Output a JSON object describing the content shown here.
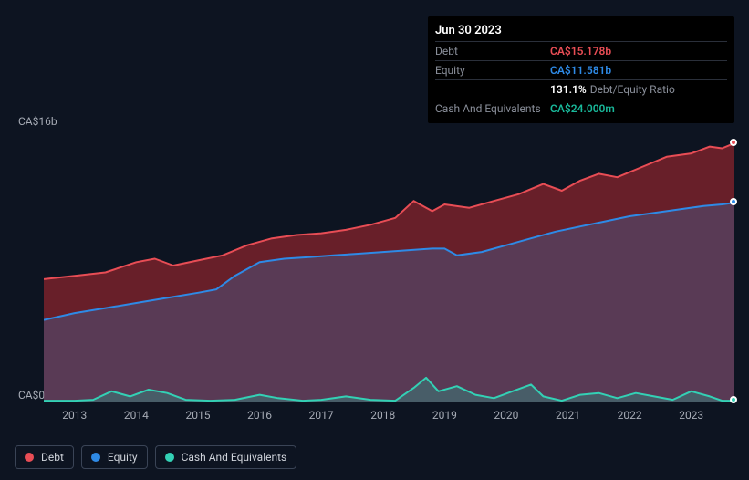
{
  "tooltip": {
    "date": "Jun 30 2023",
    "rows": {
      "debt": {
        "label": "Debt",
        "value": "CA$15.178b"
      },
      "equity": {
        "label": "Equity",
        "value": "CA$11.581b"
      },
      "ratio": {
        "pct": "131.1%",
        "label": "Debt/Equity Ratio"
      },
      "cash": {
        "label": "Cash And Equivalents",
        "value": "CA$24.000m"
      }
    }
  },
  "chart": {
    "type": "area",
    "background_color": "#0d1421",
    "grid_color": "#2b3544",
    "text_color": "#a7acb6",
    "y_axis": {
      "top_label": "CA$16b",
      "bottom_label": "CA$0",
      "min": 0,
      "max": 16
    },
    "x_axis": {
      "labels": [
        "2013",
        "2014",
        "2015",
        "2016",
        "2017",
        "2018",
        "2019",
        "2020",
        "2021",
        "2022",
        "2023"
      ],
      "min": 2012.5,
      "max": 2023.7
    },
    "series": {
      "debt": {
        "color": "#e84d55",
        "area_color": "rgba(180,40,50,0.55)",
        "line_width": 2,
        "points": [
          [
            2012.5,
            7.2
          ],
          [
            2013.0,
            7.4
          ],
          [
            2013.5,
            7.6
          ],
          [
            2014.0,
            8.2
          ],
          [
            2014.3,
            8.4
          ],
          [
            2014.6,
            8.0
          ],
          [
            2015.0,
            8.3
          ],
          [
            2015.4,
            8.6
          ],
          [
            2015.8,
            9.2
          ],
          [
            2016.2,
            9.6
          ],
          [
            2016.6,
            9.8
          ],
          [
            2017.0,
            9.9
          ],
          [
            2017.4,
            10.1
          ],
          [
            2017.8,
            10.4
          ],
          [
            2018.2,
            10.8
          ],
          [
            2018.5,
            11.8
          ],
          [
            2018.8,
            11.2
          ],
          [
            2019.0,
            11.6
          ],
          [
            2019.4,
            11.4
          ],
          [
            2019.8,
            11.8
          ],
          [
            2020.2,
            12.2
          ],
          [
            2020.6,
            12.8
          ],
          [
            2020.9,
            12.4
          ],
          [
            2021.2,
            13.0
          ],
          [
            2021.5,
            13.4
          ],
          [
            2021.8,
            13.2
          ],
          [
            2022.2,
            13.8
          ],
          [
            2022.6,
            14.4
          ],
          [
            2023.0,
            14.6
          ],
          [
            2023.3,
            15.0
          ],
          [
            2023.5,
            14.9
          ],
          [
            2023.7,
            15.2
          ]
        ]
      },
      "equity": {
        "color": "#2e8ae6",
        "area_color": "rgba(70,90,140,0.45)",
        "line_width": 2,
        "points": [
          [
            2012.5,
            4.8
          ],
          [
            2013.0,
            5.2
          ],
          [
            2013.5,
            5.5
          ],
          [
            2014.0,
            5.8
          ],
          [
            2014.5,
            6.1
          ],
          [
            2015.0,
            6.4
          ],
          [
            2015.3,
            6.6
          ],
          [
            2015.6,
            7.4
          ],
          [
            2016.0,
            8.2
          ],
          [
            2016.4,
            8.4
          ],
          [
            2016.8,
            8.5
          ],
          [
            2017.2,
            8.6
          ],
          [
            2017.6,
            8.7
          ],
          [
            2018.0,
            8.8
          ],
          [
            2018.4,
            8.9
          ],
          [
            2018.8,
            9.0
          ],
          [
            2019.0,
            9.0
          ],
          [
            2019.2,
            8.6
          ],
          [
            2019.6,
            8.8
          ],
          [
            2020.0,
            9.2
          ],
          [
            2020.4,
            9.6
          ],
          [
            2020.8,
            10.0
          ],
          [
            2021.2,
            10.3
          ],
          [
            2021.6,
            10.6
          ],
          [
            2022.0,
            10.9
          ],
          [
            2022.4,
            11.1
          ],
          [
            2022.8,
            11.3
          ],
          [
            2023.2,
            11.5
          ],
          [
            2023.5,
            11.6
          ],
          [
            2023.7,
            11.7
          ]
        ]
      },
      "cash": {
        "color": "#33d1b5",
        "area_color": "rgba(40,160,140,0.35)",
        "line_width": 2,
        "points": [
          [
            2012.5,
            0.05
          ],
          [
            2013.0,
            0.05
          ],
          [
            2013.3,
            0.1
          ],
          [
            2013.6,
            0.6
          ],
          [
            2013.9,
            0.3
          ],
          [
            2014.2,
            0.7
          ],
          [
            2014.5,
            0.5
          ],
          [
            2014.8,
            0.1
          ],
          [
            2015.2,
            0.05
          ],
          [
            2015.6,
            0.1
          ],
          [
            2016.0,
            0.4
          ],
          [
            2016.3,
            0.2
          ],
          [
            2016.7,
            0.05
          ],
          [
            2017.0,
            0.1
          ],
          [
            2017.4,
            0.3
          ],
          [
            2017.8,
            0.1
          ],
          [
            2018.2,
            0.05
          ],
          [
            2018.5,
            0.8
          ],
          [
            2018.7,
            1.4
          ],
          [
            2018.9,
            0.6
          ],
          [
            2019.2,
            0.9
          ],
          [
            2019.5,
            0.4
          ],
          [
            2019.8,
            0.2
          ],
          [
            2020.1,
            0.6
          ],
          [
            2020.4,
            1.0
          ],
          [
            2020.6,
            0.3
          ],
          [
            2020.9,
            0.05
          ],
          [
            2021.2,
            0.4
          ],
          [
            2021.5,
            0.5
          ],
          [
            2021.8,
            0.2
          ],
          [
            2022.1,
            0.5
          ],
          [
            2022.4,
            0.3
          ],
          [
            2022.7,
            0.1
          ],
          [
            2023.0,
            0.6
          ],
          [
            2023.3,
            0.3
          ],
          [
            2023.5,
            0.05
          ],
          [
            2023.7,
            0.05
          ]
        ]
      }
    },
    "end_markers": {
      "debt": {
        "x": 2023.7,
        "y": 15.2,
        "color": "#e84d55"
      },
      "equity": {
        "x": 2023.7,
        "y": 11.7,
        "color": "#2e8ae6"
      },
      "cash": {
        "x": 2023.7,
        "y": 0.05,
        "color": "#33d1b5"
      }
    }
  },
  "legend": {
    "debt": {
      "label": "Debt",
      "color": "#e84d55"
    },
    "equity": {
      "label": "Equity",
      "color": "#2e8ae6"
    },
    "cash": {
      "label": "Cash And Equivalents",
      "color": "#33d1b5"
    }
  }
}
